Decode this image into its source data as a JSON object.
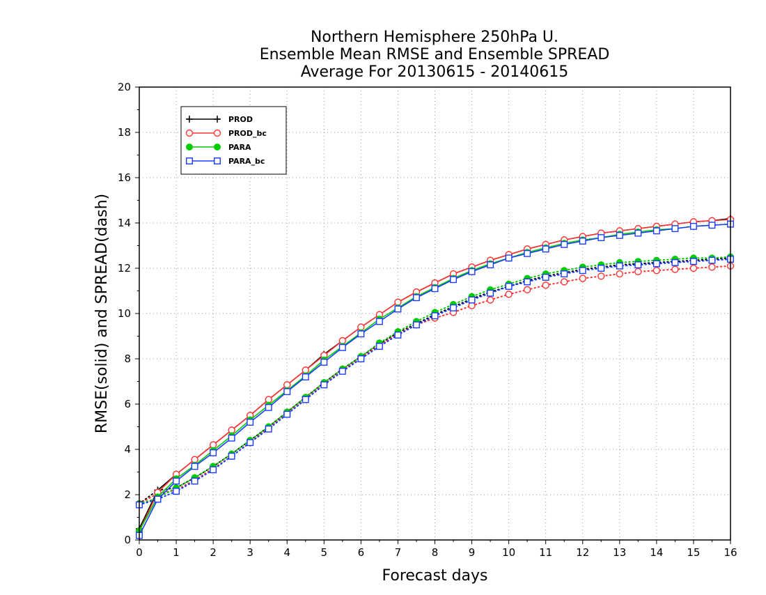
{
  "chart_data": {
    "type": "line",
    "title": [
      "Northern Hemisphere 250hPa U.",
      "Ensemble Mean RMSE and Ensemble SPREAD",
      "Average For 20130615 - 20140615"
    ],
    "xlabel": "Forecast days",
    "ylabel": "RMSE(solid) and SPREAD(dash)",
    "xlim": [
      0,
      16
    ],
    "ylim": [
      0,
      20
    ],
    "x_ticks": [
      "0",
      "1",
      "2",
      "3",
      "4",
      "5",
      "6",
      "7",
      "8",
      "9",
      "10",
      "11",
      "12",
      "13",
      "14",
      "15",
      "16"
    ],
    "y_ticks": [
      "0",
      "2",
      "4",
      "6",
      "8",
      "10",
      "12",
      "14",
      "16",
      "18",
      "20"
    ],
    "grid": true,
    "legend_position": "top-left",
    "x": [
      0,
      0.5,
      1,
      1.5,
      2,
      2.5,
      3,
      3.5,
      4,
      4.5,
      5,
      5.5,
      6,
      6.5,
      7,
      7.5,
      8,
      8.5,
      9,
      9.5,
      10,
      10.5,
      11,
      11.5,
      12,
      12.5,
      13,
      13.5,
      14,
      14.5,
      15,
      15.5,
      16
    ],
    "series": [
      {
        "name": "PROD",
        "color": "#000000",
        "marker": "plus",
        "rmse": [
          0.5,
          2.2,
          2.9,
          3.55,
          4.2,
          4.85,
          5.5,
          6.2,
          6.85,
          7.5,
          8.2,
          8.8,
          9.4,
          9.95,
          10.5,
          10.95,
          11.35,
          11.75,
          12.05,
          12.35,
          12.6,
          12.85,
          13.05,
          13.25,
          13.4,
          13.55,
          13.65,
          13.75,
          13.85,
          13.95,
          14.05,
          14.1,
          14.2
        ],
        "spread": [
          1.6,
          2.2,
          2.3,
          2.75,
          3.25,
          3.8,
          4.4,
          5.0,
          5.65,
          6.3,
          6.95,
          7.55,
          8.1,
          8.65,
          9.15,
          9.55,
          9.95,
          10.3,
          10.65,
          10.95,
          11.2,
          11.45,
          11.65,
          11.8,
          11.95,
          12.05,
          12.15,
          12.2,
          12.25,
          12.3,
          12.35,
          12.4,
          12.45
        ]
      },
      {
        "name": "PROD_bc",
        "color": "#ff3333",
        "marker": "open-circle",
        "rmse": [
          0.4,
          2.1,
          2.9,
          3.55,
          4.2,
          4.85,
          5.5,
          6.2,
          6.85,
          7.5,
          8.15,
          8.8,
          9.4,
          9.95,
          10.5,
          10.95,
          11.35,
          11.75,
          12.05,
          12.35,
          12.6,
          12.85,
          13.05,
          13.25,
          13.4,
          13.55,
          13.65,
          13.75,
          13.85,
          13.95,
          14.05,
          14.1,
          14.15
        ],
        "spread": [
          1.6,
          2.05,
          2.2,
          2.65,
          3.15,
          3.7,
          4.3,
          4.95,
          5.6,
          6.25,
          6.9,
          7.5,
          8.05,
          8.6,
          9.1,
          9.5,
          9.8,
          10.05,
          10.35,
          10.6,
          10.85,
          11.05,
          11.25,
          11.4,
          11.55,
          11.65,
          11.75,
          11.85,
          11.9,
          11.95,
          12.0,
          12.05,
          12.1
        ]
      },
      {
        "name": "PARA",
        "color": "#00cc00",
        "marker": "filled-circle",
        "rmse": [
          0.4,
          1.9,
          2.7,
          3.3,
          3.95,
          4.6,
          5.3,
          5.95,
          6.6,
          7.25,
          7.95,
          8.55,
          9.15,
          9.75,
          10.25,
          10.75,
          11.15,
          11.55,
          11.9,
          12.2,
          12.45,
          12.7,
          12.9,
          13.1,
          13.25,
          13.35,
          13.5,
          13.6,
          13.7,
          13.75,
          13.85,
          13.9,
          13.95
        ],
        "spread": [
          1.6,
          1.85,
          2.3,
          2.75,
          3.25,
          3.8,
          4.4,
          5.0,
          5.65,
          6.3,
          6.95,
          7.55,
          8.1,
          8.7,
          9.2,
          9.65,
          10.05,
          10.4,
          10.75,
          11.05,
          11.3,
          11.55,
          11.75,
          11.9,
          12.05,
          12.15,
          12.25,
          12.3,
          12.35,
          12.4,
          12.45,
          12.45,
          12.5
        ]
      },
      {
        "name": "PARA_bc",
        "color": "#1a3cff",
        "marker": "open-square",
        "rmse": [
          0.2,
          1.8,
          2.6,
          3.25,
          3.85,
          4.5,
          5.2,
          5.85,
          6.55,
          7.2,
          7.85,
          8.5,
          9.1,
          9.65,
          10.2,
          10.7,
          11.1,
          11.5,
          11.85,
          12.15,
          12.45,
          12.65,
          12.85,
          13.05,
          13.2,
          13.35,
          13.45,
          13.55,
          13.65,
          13.75,
          13.85,
          13.9,
          13.95
        ],
        "spread": [
          1.55,
          1.8,
          2.15,
          2.6,
          3.1,
          3.7,
          4.3,
          4.9,
          5.55,
          6.2,
          6.85,
          7.45,
          8.0,
          8.55,
          9.05,
          9.5,
          9.9,
          10.25,
          10.6,
          10.9,
          11.2,
          11.4,
          11.6,
          11.75,
          11.9,
          12.0,
          12.1,
          12.15,
          12.2,
          12.25,
          12.3,
          12.35,
          12.4
        ]
      }
    ]
  }
}
